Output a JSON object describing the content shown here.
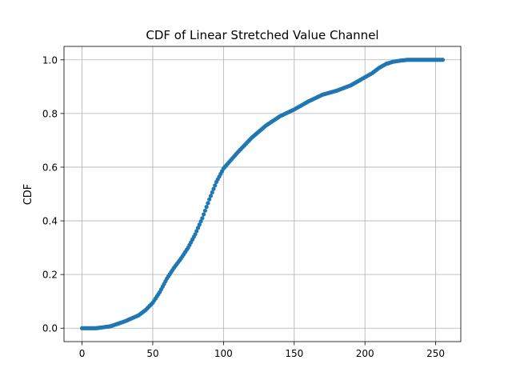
{
  "chart_data": {
    "type": "scatter",
    "title": "CDF of Linear Stretched Value Channel",
    "xlabel": "",
    "ylabel": "CDF",
    "xlim": [
      -12.75,
      267.75
    ],
    "ylim": [
      -0.05,
      1.05
    ],
    "xticks": [
      0,
      50,
      100,
      150,
      200,
      250
    ],
    "yticks": [
      0.0,
      0.2,
      0.4,
      0.6,
      0.8,
      1.0
    ],
    "xtick_labels": [
      "0",
      "50",
      "100",
      "150",
      "200",
      "250"
    ],
    "ytick_labels": [
      "0.0",
      "0.2",
      "0.4",
      "0.6",
      "0.8",
      "1.0"
    ],
    "grid": true,
    "color": "#1f77b4",
    "curve_anchors": {
      "x": [
        0,
        10,
        20,
        30,
        40,
        45,
        50,
        55,
        60,
        65,
        70,
        75,
        80,
        85,
        90,
        95,
        100,
        105,
        110,
        120,
        130,
        140,
        150,
        160,
        170,
        180,
        190,
        200,
        205,
        210,
        215,
        220,
        225,
        230,
        255
      ],
      "y": [
        0.0,
        0.0,
        0.007,
        0.025,
        0.048,
        0.068,
        0.095,
        0.135,
        0.185,
        0.225,
        0.26,
        0.3,
        0.35,
        0.41,
        0.48,
        0.545,
        0.595,
        0.625,
        0.655,
        0.71,
        0.755,
        0.79,
        0.815,
        0.845,
        0.87,
        0.885,
        0.905,
        0.935,
        0.95,
        0.97,
        0.985,
        0.993,
        0.997,
        1.0,
        1.0
      ]
    }
  }
}
